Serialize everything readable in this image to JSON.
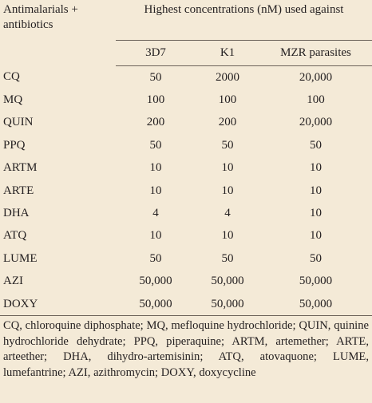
{
  "table": {
    "header": {
      "row_label": "Antimalarials + antibiotics",
      "group_label": "Highest concentrations (nM) used against",
      "columns": [
        "3D7",
        "K1",
        "MZR parasites"
      ]
    },
    "rows": [
      [
        "CQ",
        "50",
        "2000",
        "20,000"
      ],
      [
        "MQ",
        "100",
        "100",
        "100"
      ],
      [
        "QUIN",
        "200",
        "200",
        "20,000"
      ],
      [
        "PPQ",
        "50",
        "50",
        "50"
      ],
      [
        "ARTM",
        "10",
        "10",
        "10"
      ],
      [
        "ARTE",
        "10",
        "10",
        "10"
      ],
      [
        "DHA",
        "4",
        "4",
        "10"
      ],
      [
        "ATQ",
        "10",
        "10",
        "10"
      ],
      [
        "LUME",
        "50",
        "50",
        "50"
      ],
      [
        "AZI",
        "50,000",
        "50,000",
        "50,000"
      ],
      [
        "DOXY",
        "50,000",
        "50,000",
        "50,000"
      ]
    ]
  },
  "footnote": "CQ, chloroquine diphosphate; MQ, mefloquine hydrochloride; QUIN, quinine hydrochloride dehydrate; PPQ, piperaquine; ARTM, artemether; ARTE, arteether; DHA, dihydro-artemisinin; ATQ, atovaquone; LUME, lumefantrine; AZI, azithromycin; DOXY, doxycycline"
}
